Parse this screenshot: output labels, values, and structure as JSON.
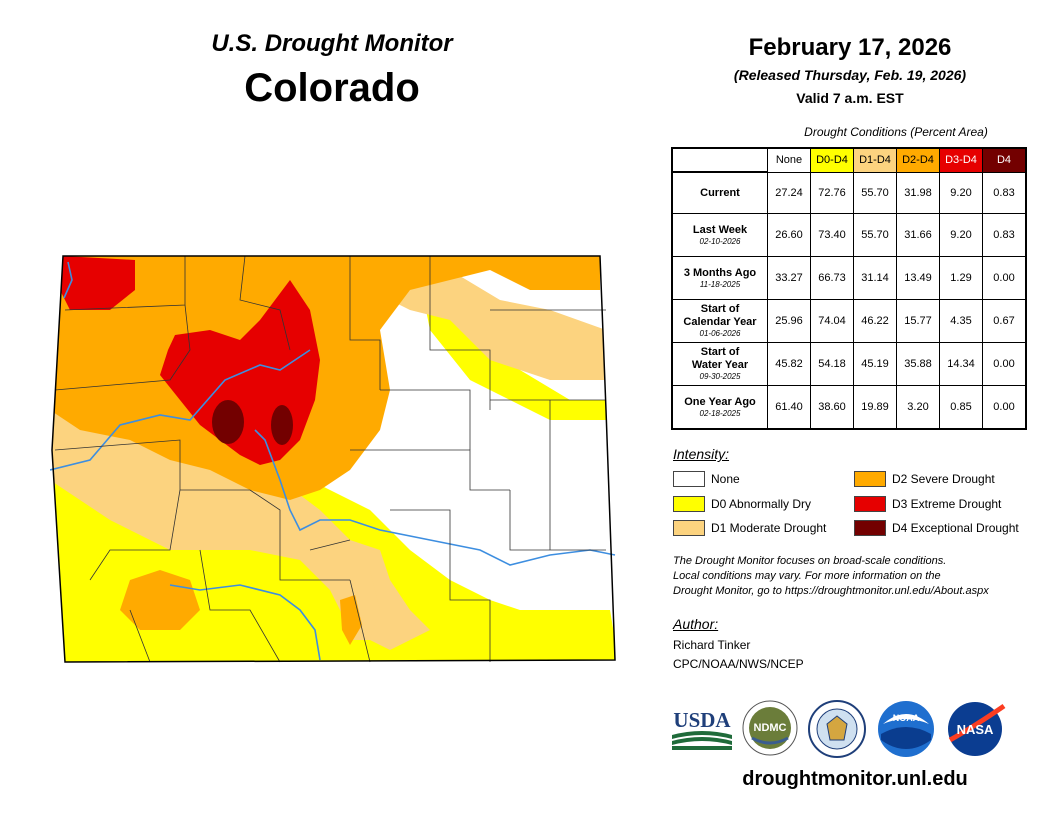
{
  "header": {
    "subtitle": "U.S. Drought Monitor",
    "state": "Colorado",
    "date": "February 17, 2026",
    "released": "(Released Thursday, Feb. 19, 2026)",
    "valid": "Valid 7 a.m. EST"
  },
  "table": {
    "caption": "Drought Conditions (Percent Area)",
    "columns": [
      {
        "label": "None",
        "color": "#ffffff"
      },
      {
        "label": "D0-D4",
        "color": "#ffff00"
      },
      {
        "label": "D1-D4",
        "color": "#fcd37f"
      },
      {
        "label": "D2-D4",
        "color": "#ffaa00"
      },
      {
        "label": "D3-D4",
        "color": "#e60000"
      },
      {
        "label": "D4",
        "color": "#730000"
      }
    ],
    "rows": [
      {
        "label": "Current",
        "label2": "",
        "date": "",
        "values": [
          "27.24",
          "72.76",
          "55.70",
          "31.98",
          "9.20",
          "0.83"
        ]
      },
      {
        "label": "Last Week",
        "label2": "",
        "date": "02-10-2026",
        "values": [
          "26.60",
          "73.40",
          "55.70",
          "31.66",
          "9.20",
          "0.83"
        ]
      },
      {
        "label": "3 Months Ago",
        "label2": "",
        "date": "11-18-2025",
        "values": [
          "33.27",
          "66.73",
          "31.14",
          "13.49",
          "1.29",
          "0.00"
        ]
      },
      {
        "label": "Start of",
        "label2": "Calendar Year",
        "date": "01-06-2026",
        "values": [
          "25.96",
          "74.04",
          "46.22",
          "15.77",
          "4.35",
          "0.67"
        ]
      },
      {
        "label": "Start of",
        "label2": "Water Year",
        "date": "09-30-2025",
        "values": [
          "45.82",
          "54.18",
          "45.19",
          "35.88",
          "14.34",
          "0.00"
        ]
      },
      {
        "label": "One Year Ago",
        "label2": "",
        "date": "02-18-2025",
        "values": [
          "61.40",
          "38.60",
          "19.89",
          "3.20",
          "0.85",
          "0.00"
        ]
      }
    ]
  },
  "legend": {
    "title": "Intensity:",
    "items": [
      {
        "label": "None",
        "color": "#ffffff"
      },
      {
        "label": "D0 Abnormally Dry",
        "color": "#ffff00"
      },
      {
        "label": "D1 Moderate Drought",
        "color": "#fcd37f"
      },
      {
        "label": "D2 Severe Drought",
        "color": "#ffaa00"
      },
      {
        "label": "D3 Extreme Drought",
        "color": "#e60000"
      },
      {
        "label": "D4 Exceptional Drought",
        "color": "#730000"
      }
    ]
  },
  "note": {
    "line1": "The Drought Monitor focuses on broad-scale conditions.",
    "line2": "Local conditions may vary. For more information on the",
    "line3": "Drought Monitor, go to https://droughtmonitor.unl.edu/About.aspx"
  },
  "author": {
    "title": "Author:",
    "name": "Richard Tinker",
    "org": "CPC/NOAA/NWS/NCEP"
  },
  "logos": {
    "usda": "USDA",
    "ndmc": "NDMC",
    "noaa": "NOAA",
    "nasa": "NASA"
  },
  "footer_url": "droughtmonitor.unl.edu"
}
